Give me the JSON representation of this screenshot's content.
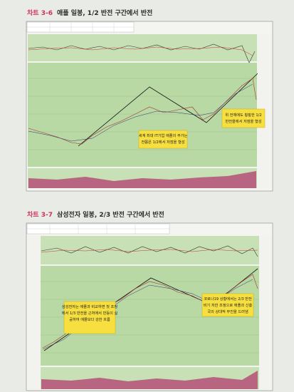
{
  "figures": [
    {
      "number": "차트 3-6",
      "caption": "애플 일봉, 1/2 반전 구간에서 반전",
      "annotations": [
        {
          "lines": [
            "세계 최대 IT기업 애플의 주가는",
            "전쯤은 1/2에서 저점을 형성"
          ]
        },
        {
          "lines": [
            "위 전체에도 횡횡한 1/2",
            "반전을에서 저점을 형성"
          ]
        }
      ]
    },
    {
      "number": "차트 3-7",
      "caption": "삼성전자 일봉, 2/3 반전 구간에서 반전",
      "annotations": [
        {
          "lines": [
            "삼성전자는 애플과 비교하면 첫 조정",
            "에서 1/3 반전을 근처에서 반등이 실",
            "공하여 애플보다 강한 흐름",
            ""
          ]
        },
        {
          "lines": [
            "코로나19 상황에서는 2/3 반전",
            "비기 저한 조정으로 애플과 신흥",
            "국의 상대적 부진을 드러냄"
          ]
        }
      ]
    }
  ]
}
